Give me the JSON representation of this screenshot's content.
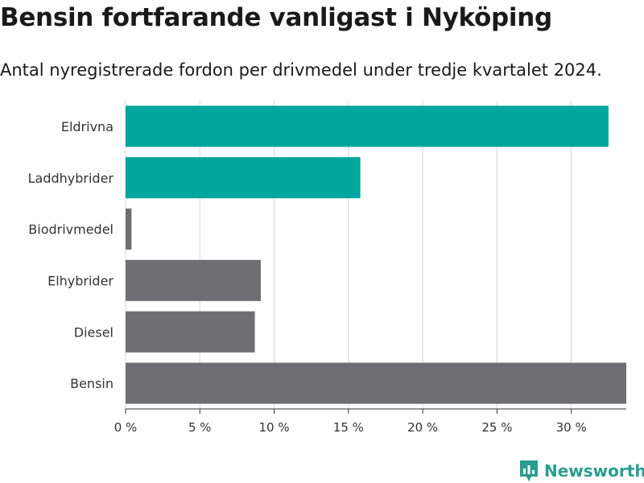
{
  "title": "Bensin fortfarande vanligast i Nyköping",
  "subtitle": "Antal nyregistrerade fordon per drivmedel under tredje kvartalet 2024.",
  "brand": {
    "name": "Newsworthy",
    "icon": "newsworthy-logo-icon"
  },
  "colors": {
    "highlight": "#00a59b",
    "neutral": "#6e6e73",
    "grid": "#dcdcdc",
    "brand": "#2a9d8f"
  },
  "chart_data": {
    "type": "bar",
    "orientation": "horizontal",
    "categories": [
      "Eldrivna",
      "Laddhybrider",
      "Biodrivmedel",
      "Elhybrider",
      "Diesel",
      "Bensin"
    ],
    "values": [
      32.5,
      15.8,
      0.4,
      9.1,
      8.7,
      33.7
    ],
    "highlighted": [
      true,
      true,
      false,
      false,
      false,
      false
    ],
    "xlim": [
      0,
      33.7
    ],
    "xticks": [
      0,
      5,
      10,
      15,
      20,
      25,
      30
    ],
    "xtick_labels": [
      "0 %",
      "5 %",
      "10 %",
      "15 %",
      "20 %",
      "25 %",
      "30 %"
    ],
    "grid": true
  }
}
